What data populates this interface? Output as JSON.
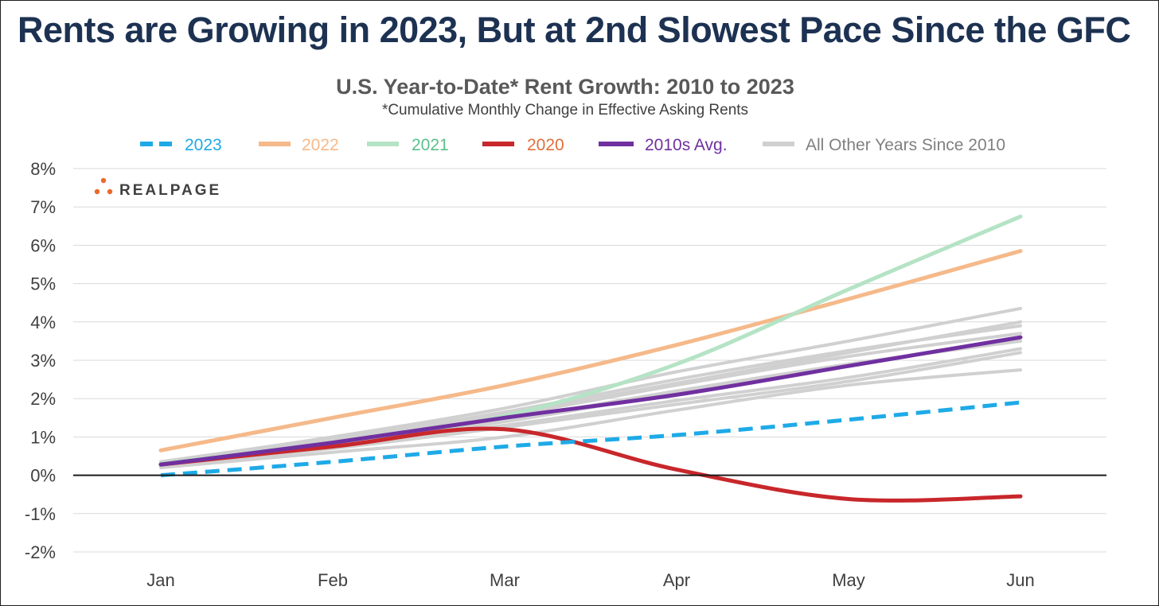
{
  "headline": "Rents are Growing in 2023, But at 2nd Slowest Pace Since the GFC",
  "logo": {
    "text": "REALPAGE",
    "mark": "realpage-dots-logo"
  },
  "chart_data": {
    "type": "line",
    "title": "U.S. Year-to-Date* Rent Growth: 2010 to 2023",
    "subtitle": "*Cumulative Monthly Change in Effective Asking Rents",
    "xlabel": "",
    "ylabel": "",
    "categories": [
      "Jan",
      "Feb",
      "Mar",
      "Apr",
      "May",
      "Jun"
    ],
    "ylim": [
      -2,
      8
    ],
    "yticks": [
      "8%",
      "7%",
      "6%",
      "5%",
      "4%",
      "3%",
      "2%",
      "1%",
      "0%",
      "-1%",
      "-2%"
    ],
    "yticks_values": [
      8,
      7,
      6,
      5,
      4,
      3,
      2,
      1,
      0,
      -1,
      -2
    ],
    "grid": true,
    "legend_position": "top",
    "series": [
      {
        "name": "All Other Years Since 2010",
        "role": "other",
        "color": "#d0d0d0",
        "style": "solid",
        "values": [
          0.25,
          0.75,
          1.3,
          1.95,
          2.55,
          3.3
        ]
      },
      {
        "name": "",
        "role": "other",
        "color": "#d0d0d0",
        "style": "solid",
        "values": [
          0.2,
          0.6,
          1.0,
          1.7,
          2.35,
          2.75
        ]
      },
      {
        "name": "",
        "role": "other",
        "color": "#d0d0d0",
        "style": "solid",
        "values": [
          0.3,
          0.85,
          1.45,
          2.2,
          2.9,
          3.5
        ]
      },
      {
        "name": "",
        "role": "other",
        "color": "#d0d0d0",
        "style": "solid",
        "values": [
          0.3,
          0.9,
          1.55,
          2.35,
          3.1,
          3.7
        ]
      },
      {
        "name": "",
        "role": "other",
        "color": "#d0d0d0",
        "style": "solid",
        "values": [
          0.35,
          0.95,
          1.65,
          2.5,
          3.25,
          3.9
        ]
      },
      {
        "name": "",
        "role": "other",
        "color": "#d0d0d0",
        "style": "solid",
        "values": [
          0.3,
          0.9,
          1.6,
          2.4,
          3.2,
          4.0
        ]
      },
      {
        "name": "",
        "role": "other",
        "color": "#d0d0d0",
        "style": "solid",
        "values": [
          0.35,
          1.0,
          1.75,
          2.7,
          3.5,
          4.35
        ]
      },
      {
        "name": "",
        "role": "other",
        "color": "#d0d0d0",
        "style": "solid",
        "values": [
          0.25,
          0.7,
          1.25,
          1.85,
          2.45,
          3.2
        ]
      },
      {
        "name": "",
        "role": "other",
        "color": "#d0d0d0",
        "style": "solid",
        "values": [
          0.3,
          0.8,
          1.4,
          2.15,
          2.85,
          3.6
        ]
      },
      {
        "name": "2022",
        "role": "main",
        "color": "#f5b98a",
        "style": "solid",
        "values": [
          0.65,
          1.5,
          2.35,
          3.4,
          4.6,
          5.85
        ]
      },
      {
        "name": "2021",
        "role": "main",
        "color": "#b5e3c5",
        "style": "solid",
        "values": [
          0.3,
          0.85,
          1.55,
          2.9,
          4.85,
          6.75
        ]
      },
      {
        "name": "2020",
        "role": "main",
        "color": "#c8272b",
        "style": "solid",
        "values": [
          0.28,
          0.75,
          1.2,
          0.15,
          -0.62,
          -0.55
        ]
      },
      {
        "name": "2010s Avg.",
        "role": "main",
        "color": "#7030a0",
        "style": "solid",
        "values": [
          0.28,
          0.85,
          1.5,
          2.1,
          2.85,
          3.6
        ]
      },
      {
        "name": "2023",
        "role": "main",
        "color": "#1eaae7",
        "style": "dashed",
        "values": [
          0.0,
          0.35,
          0.75,
          1.05,
          1.45,
          1.9
        ]
      }
    ]
  },
  "legend": [
    {
      "label": "2023",
      "color": "#1eaae7",
      "text_color": "#1eaae7",
      "style": "dashed"
    },
    {
      "label": "2022",
      "color": "#f5b98a",
      "text_color": "#f5b98a",
      "style": "solid"
    },
    {
      "label": "2021",
      "color": "#b5e3c5",
      "text_color": "#5cc08c",
      "style": "solid"
    },
    {
      "label": "2020",
      "color": "#c8272b",
      "text_color": "#e0703c",
      "style": "solid"
    },
    {
      "label": "2010s Avg.",
      "color": "#7030a0",
      "text_color": "#7030a0",
      "style": "solid"
    },
    {
      "label": "All Other Years Since 2010",
      "color": "#d0d0d0",
      "text_color": "#808080",
      "style": "solid"
    }
  ]
}
